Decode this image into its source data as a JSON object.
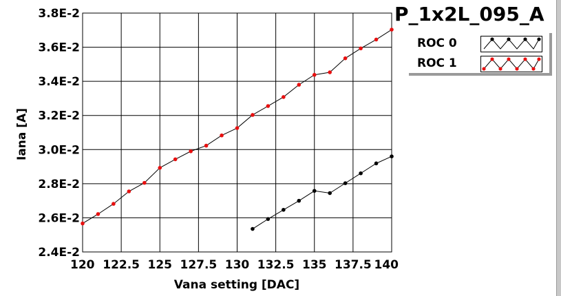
{
  "chart_data": {
    "type": "line",
    "title": "P_1x2L_095_A",
    "xlabel": "Vana setting [DAC]",
    "ylabel": "Iana [A]",
    "xlim": [
      120,
      140
    ],
    "ylim": [
      0.024,
      0.038
    ],
    "x_ticks": [
      120,
      122.5,
      125,
      127.5,
      130,
      132.5,
      135,
      137.5,
      140
    ],
    "x_tick_labels": [
      "120",
      "122.5",
      "125",
      "127.5",
      "130",
      "132.5",
      "135",
      "137.5",
      "140"
    ],
    "y_ticks": [
      0.024,
      0.026,
      0.028,
      0.03,
      0.032,
      0.034,
      0.036,
      0.038
    ],
    "y_tick_labels": [
      "2.4E-2",
      "2.6E-2",
      "2.8E-2",
      "3.0E-2",
      "3.2E-2",
      "3.4E-2",
      "3.6E-2",
      "3.8E-2"
    ],
    "grid": true,
    "legend_position": "top-right",
    "series": [
      {
        "name": "ROC 0",
        "line_color": "#000000",
        "marker_color": "#000000",
        "x": [
          131,
          132,
          133,
          134,
          135,
          136,
          137,
          138,
          139,
          140
        ],
        "y": [
          0.02535,
          0.02593,
          0.02647,
          0.027,
          0.02758,
          0.02745,
          0.02803,
          0.02861,
          0.02919,
          0.0296
        ]
      },
      {
        "name": "ROC 1",
        "line_color": "#000000",
        "marker_color": "#e81010",
        "x": [
          120,
          121,
          122,
          123,
          124,
          125,
          126,
          127,
          128,
          129,
          130,
          131,
          132,
          133,
          134,
          135,
          136,
          137,
          138,
          139,
          140
        ],
        "y": [
          0.02567,
          0.02622,
          0.02682,
          0.02755,
          0.02805,
          0.02893,
          0.02943,
          0.0299,
          0.03023,
          0.03083,
          0.03126,
          0.03203,
          0.03255,
          0.03308,
          0.0338,
          0.03438,
          0.03453,
          0.03535,
          0.03593,
          0.03645,
          0.03703
        ]
      }
    ]
  }
}
